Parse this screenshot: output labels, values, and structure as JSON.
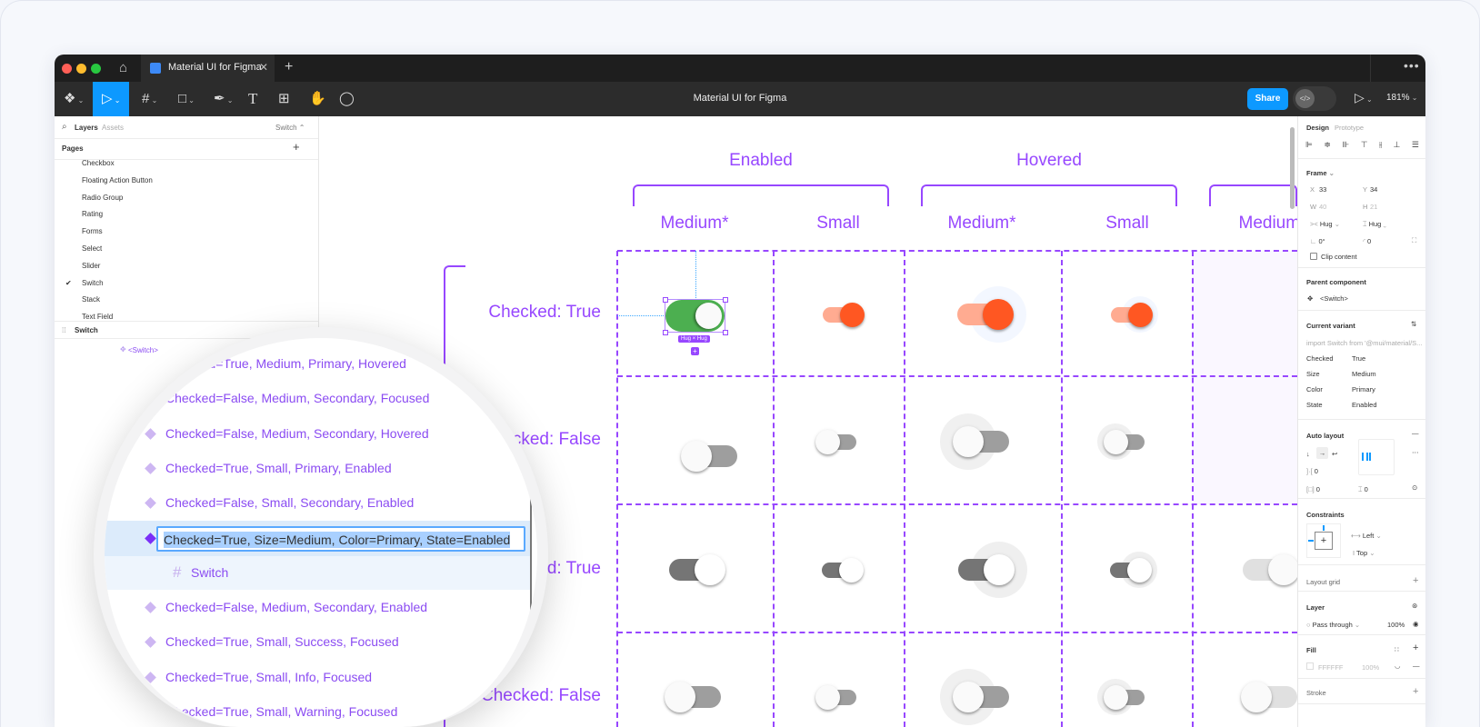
{
  "window": {
    "tab_title": "Material UI for Figma",
    "file_title": "Material UI for Figma",
    "share_label": "Share",
    "zoom_level": "181%"
  },
  "colors": {
    "accent": "#9747ff",
    "primary_blue": "#0d99ff",
    "switch_green": "#4caf50",
    "switch_orange": "#ff5722",
    "switch_orange_track": "#ffab91"
  },
  "left_panel": {
    "tab_layers": "Layers",
    "tab_assets": "Assets",
    "page_selector": "Switch",
    "pages_label": "Pages",
    "pages": [
      "Checkbox",
      "Floating Action Button",
      "Radio Group",
      "Rating",
      "Forms",
      "Select",
      "Slider",
      "Switch",
      "Stack",
      "Text Field"
    ],
    "current_page": "Switch",
    "layer_frame": "Switch",
    "component_set": "<Switch>"
  },
  "layers": {
    "variants": [
      "Checked=True, Medium, Primary, Hovered",
      "Checked=False, Medium, Secondary, Focused",
      "Checked=False, Medium, Secondary, Hovered",
      "Checked=True, Small, Primary, Enabled",
      "Checked=False, Small, Secondary, Enabled",
      "Checked=True, Size=Medium, Color=Primary, State=Enabled",
      "Switch",
      "Checked=False, Medium, Secondary, Enabled",
      "Checked=True, Small, Success, Focused",
      "Checked=True, Small, Info, Focused",
      "Checked=True, Small, Warning, Focused"
    ],
    "selected_index": 5
  },
  "canvas": {
    "group_headers": [
      "Enabled",
      "Hovered"
    ],
    "column_headers": [
      "Medium*",
      "Small",
      "Medium*",
      "Small",
      "Medium*"
    ],
    "row_labels": [
      "Checked: True",
      "Checked: False",
      "Checked: True",
      "Checked: False"
    ],
    "selection_badge": "Hug × Hug"
  },
  "right_panel": {
    "tab_design": "Design",
    "tab_prototype": "Prototype",
    "frame_label": "Frame",
    "x_label": "X",
    "x": "33",
    "y_label": "Y",
    "y": "34",
    "w_label": "W",
    "w": "40",
    "h_label": "H",
    "h": "21",
    "width_mode": "Hug",
    "height_mode": "Hug",
    "rotation": "0°",
    "radius": "0",
    "clip_content": "Clip content",
    "parent_component_label": "Parent component",
    "parent_component": "<Switch>",
    "current_variant_label": "Current variant",
    "import_hint": "import Switch from '@mui/material/S...",
    "props": [
      {
        "name": "Checked",
        "value": "True"
      },
      {
        "name": "Size",
        "value": "Medium"
      },
      {
        "name": "Color",
        "value": "Primary"
      },
      {
        "name": "State",
        "value": "Enabled"
      }
    ],
    "auto_layout_label": "Auto layout",
    "spacing": "0",
    "padding_h": "0",
    "padding_v": "0",
    "constraints_label": "Constraints",
    "constraint_h": "Left",
    "constraint_v": "Top",
    "layout_grid_label": "Layout grid",
    "layer_label": "Layer",
    "blend_mode": "Pass through",
    "layer_opacity": "100%",
    "fill_label": "Fill",
    "fill_hex": "FFFFFF",
    "fill_opacity": "100%",
    "stroke_label": "Stroke"
  }
}
